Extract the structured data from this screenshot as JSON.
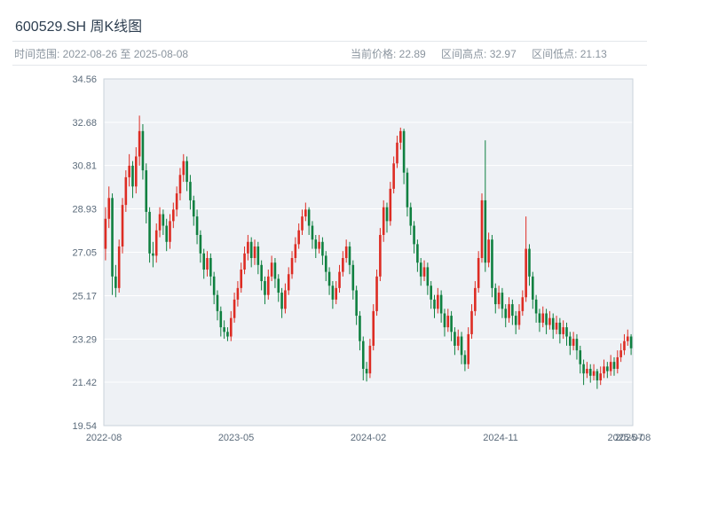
{
  "header": {
    "title": "600529.SH 周K线图",
    "time_range_label": "时间范围: 2022-08-26 至 2025-08-08",
    "current_price_label": "当前价格: 22.89",
    "range_high_label": "区间高点: 32.97",
    "range_low_label": "区间低点: 21.13"
  },
  "chart_data": {
    "type": "candlestick",
    "title": "600529.SH 周K线图",
    "period": "weekly",
    "symbol": "600529.SH",
    "date_start": "2022-08-26",
    "date_end": "2025-08-08",
    "current_price": 22.89,
    "range_high": 32.97,
    "range_low": 21.13,
    "ylim": [
      19.54,
      34.56
    ],
    "y_ticks": [
      19.54,
      21.42,
      23.29,
      25.17,
      27.05,
      28.93,
      30.81,
      32.68,
      34.56
    ],
    "x_ticks": [
      {
        "pos": 0.0,
        "label": "2022-08"
      },
      {
        "pos": 0.25,
        "label": "2023-05"
      },
      {
        "pos": 0.5,
        "label": "2024-02"
      },
      {
        "pos": 0.75,
        "label": "2024-11"
      },
      {
        "pos": 0.986,
        "label": "2025-07"
      },
      {
        "pos": 1.0,
        "label": "2025-08"
      }
    ],
    "up_color": "#dd2c23",
    "down_color": "#0f8040",
    "plot_bg": "#eef1f5",
    "grid_color": "#ffffff",
    "border_color": "#c9d2da",
    "grid_on": true,
    "legend": "none",
    "candles_format": [
      "open",
      "high",
      "low",
      "close"
    ],
    "candles": [
      [
        27.2,
        29.0,
        26.7,
        28.5
      ],
      [
        28.5,
        29.9,
        28.1,
        29.4
      ],
      [
        29.4,
        29.6,
        25.2,
        26.0
      ],
      [
        26.0,
        26.5,
        25.1,
        25.5
      ],
      [
        25.5,
        27.6,
        25.3,
        27.3
      ],
      [
        27.3,
        29.4,
        27.0,
        29.1
      ],
      [
        29.1,
        30.6,
        28.8,
        30.3
      ],
      [
        30.3,
        31.3,
        29.9,
        30.8
      ],
      [
        30.8,
        31.0,
        29.4,
        29.9
      ],
      [
        29.9,
        31.6,
        29.6,
        31.2
      ],
      [
        31.2,
        32.97,
        30.8,
        32.3
      ],
      [
        32.3,
        32.6,
        30.2,
        30.6
      ],
      [
        30.6,
        30.9,
        28.3,
        28.8
      ],
      [
        28.8,
        29.0,
        26.6,
        27.0
      ],
      [
        27.0,
        27.5,
        26.4,
        26.9
      ],
      [
        26.9,
        28.3,
        26.6,
        28.0
      ],
      [
        28.0,
        29.0,
        27.7,
        28.7
      ],
      [
        28.7,
        28.9,
        27.8,
        28.2
      ],
      [
        28.2,
        28.5,
        27.1,
        27.5
      ],
      [
        27.5,
        28.7,
        27.2,
        28.4
      ],
      [
        28.4,
        29.2,
        28.1,
        28.9
      ],
      [
        28.9,
        29.9,
        28.6,
        29.6
      ],
      [
        29.6,
        30.7,
        29.3,
        30.4
      ],
      [
        30.4,
        31.3,
        30.1,
        31.0
      ],
      [
        31.0,
        31.2,
        29.7,
        30.1
      ],
      [
        30.1,
        30.4,
        28.9,
        29.3
      ],
      [
        29.3,
        29.5,
        28.2,
        28.6
      ],
      [
        28.6,
        28.9,
        27.4,
        27.8
      ],
      [
        27.8,
        28.0,
        26.6,
        27.0
      ],
      [
        27.0,
        27.2,
        25.9,
        26.3
      ],
      [
        26.3,
        27.1,
        26.0,
        26.8
      ],
      [
        26.8,
        27.0,
        25.6,
        26.0
      ],
      [
        26.0,
        26.2,
        24.8,
        25.2
      ],
      [
        25.2,
        25.4,
        24.1,
        24.5
      ],
      [
        24.5,
        24.7,
        23.4,
        23.8
      ],
      [
        23.8,
        24.1,
        23.3,
        23.6
      ],
      [
        23.6,
        23.8,
        23.2,
        23.4
      ],
      [
        23.4,
        24.5,
        23.2,
        24.2
      ],
      [
        24.2,
        25.3,
        24.0,
        25.0
      ],
      [
        25.0,
        25.8,
        24.7,
        25.5
      ],
      [
        25.5,
        26.6,
        25.3,
        26.3
      ],
      [
        26.3,
        27.3,
        26.1,
        27.0
      ],
      [
        27.0,
        27.8,
        26.7,
        27.5
      ],
      [
        27.5,
        27.7,
        26.4,
        26.8
      ],
      [
        26.8,
        27.6,
        26.5,
        27.3
      ],
      [
        27.3,
        27.5,
        26.1,
        26.5
      ],
      [
        26.5,
        26.7,
        25.4,
        25.8
      ],
      [
        25.8,
        26.0,
        24.8,
        25.2
      ],
      [
        25.2,
        26.3,
        25.0,
        26.0
      ],
      [
        26.0,
        26.9,
        25.8,
        26.6
      ],
      [
        26.6,
        26.8,
        25.5,
        25.9
      ],
      [
        25.9,
        26.1,
        24.9,
        25.3
      ],
      [
        25.3,
        25.5,
        24.2,
        24.6
      ],
      [
        24.6,
        25.7,
        24.4,
        25.4
      ],
      [
        25.4,
        26.4,
        25.2,
        26.1
      ],
      [
        26.1,
        27.1,
        25.9,
        26.8
      ],
      [
        26.8,
        27.7,
        26.6,
        27.4
      ],
      [
        27.4,
        28.3,
        27.2,
        28.0
      ],
      [
        28.0,
        28.9,
        27.8,
        28.6
      ],
      [
        28.6,
        29.2,
        28.4,
        28.9
      ],
      [
        28.9,
        29.0,
        27.8,
        28.2
      ],
      [
        28.2,
        28.4,
        27.2,
        27.6
      ],
      [
        27.6,
        27.8,
        26.8,
        27.2
      ],
      [
        27.2,
        27.8,
        27.0,
        27.5
      ],
      [
        27.5,
        27.7,
        26.5,
        26.9
      ],
      [
        26.9,
        27.1,
        25.8,
        26.2
      ],
      [
        26.2,
        26.4,
        25.2,
        25.6
      ],
      [
        25.6,
        25.8,
        24.6,
        25.0
      ],
      [
        25.0,
        25.8,
        24.8,
        25.5
      ],
      [
        25.5,
        26.5,
        25.3,
        26.2
      ],
      [
        26.2,
        27.1,
        26.0,
        26.8
      ],
      [
        26.8,
        27.6,
        26.6,
        27.3
      ],
      [
        27.3,
        27.5,
        26.1,
        26.5
      ],
      [
        26.5,
        26.7,
        25.0,
        25.4
      ],
      [
        25.4,
        25.6,
        23.9,
        24.3
      ],
      [
        24.3,
        24.5,
        22.8,
        23.2
      ],
      [
        23.2,
        23.4,
        21.5,
        22.0
      ],
      [
        22.0,
        22.3,
        21.45,
        21.8
      ],
      [
        21.8,
        23.3,
        21.6,
        23.0
      ],
      [
        23.0,
        24.8,
        22.8,
        24.5
      ],
      [
        24.5,
        26.3,
        24.3,
        26.0
      ],
      [
        26.0,
        28.1,
        25.8,
        27.8
      ],
      [
        27.8,
        29.3,
        27.5,
        29.0
      ],
      [
        29.0,
        29.2,
        27.9,
        28.4
      ],
      [
        28.4,
        30.1,
        28.2,
        29.8
      ],
      [
        29.8,
        31.2,
        29.6,
        30.9
      ],
      [
        30.9,
        32.1,
        30.7,
        31.8
      ],
      [
        31.8,
        32.45,
        31.5,
        32.3
      ],
      [
        32.3,
        32.4,
        30.0,
        30.5
      ],
      [
        30.5,
        30.7,
        28.6,
        29.0
      ],
      [
        29.0,
        29.2,
        27.8,
        28.2
      ],
      [
        28.2,
        28.4,
        27.0,
        27.4
      ],
      [
        27.4,
        27.6,
        26.2,
        26.6
      ],
      [
        26.6,
        26.8,
        25.6,
        26.0
      ],
      [
        26.0,
        26.7,
        25.8,
        26.4
      ],
      [
        26.4,
        26.6,
        25.2,
        25.6
      ],
      [
        25.6,
        25.8,
        24.6,
        25.0
      ],
      [
        25.0,
        25.2,
        24.2,
        24.6
      ],
      [
        24.6,
        25.5,
        24.4,
        25.2
      ],
      [
        25.2,
        25.4,
        24.0,
        24.4
      ],
      [
        24.4,
        24.6,
        23.4,
        23.8
      ],
      [
        23.8,
        24.6,
        23.6,
        24.3
      ],
      [
        24.3,
        24.5,
        23.2,
        23.6
      ],
      [
        23.6,
        23.8,
        22.6,
        23.0
      ],
      [
        23.0,
        23.7,
        22.8,
        23.4
      ],
      [
        23.4,
        23.6,
        22.2,
        22.6
      ],
      [
        22.6,
        22.8,
        21.9,
        22.2
      ],
      [
        22.2,
        23.8,
        22.0,
        23.5
      ],
      [
        23.5,
        24.8,
        23.3,
        24.5
      ],
      [
        24.5,
        25.8,
        24.3,
        25.5
      ],
      [
        25.5,
        27.1,
        25.3,
        26.8
      ],
      [
        26.8,
        29.6,
        26.6,
        29.3
      ],
      [
        29.3,
        31.9,
        26.2,
        26.6
      ],
      [
        26.6,
        27.9,
        26.4,
        27.6
      ],
      [
        27.6,
        27.8,
        25.1,
        25.5
      ],
      [
        25.5,
        25.7,
        24.4,
        24.8
      ],
      [
        24.8,
        25.6,
        24.6,
        25.3
      ],
      [
        25.3,
        25.5,
        24.2,
        24.6
      ],
      [
        24.6,
        24.8,
        23.8,
        24.2
      ],
      [
        24.2,
        25.1,
        24.0,
        24.8
      ],
      [
        24.8,
        25.0,
        23.9,
        24.3
      ],
      [
        24.3,
        24.5,
        23.5,
        23.9
      ],
      [
        23.9,
        24.8,
        23.7,
        24.5
      ],
      [
        24.5,
        25.4,
        24.3,
        25.1
      ],
      [
        25.1,
        28.6,
        24.9,
        27.2
      ],
      [
        27.2,
        27.4,
        25.6,
        26.0
      ],
      [
        26.0,
        26.2,
        24.6,
        25.0
      ],
      [
        25.0,
        25.2,
        24.0,
        24.4
      ],
      [
        24.4,
        24.6,
        23.6,
        24.0
      ],
      [
        24.0,
        24.7,
        23.8,
        24.4
      ],
      [
        24.4,
        24.6,
        23.5,
        23.9
      ],
      [
        23.9,
        24.5,
        23.7,
        24.2
      ],
      [
        24.2,
        24.4,
        23.3,
        23.7
      ],
      [
        23.7,
        24.3,
        23.5,
        24.0
      ],
      [
        24.0,
        24.2,
        23.1,
        23.5
      ],
      [
        23.5,
        24.1,
        23.3,
        23.8
      ],
      [
        23.8,
        24.0,
        23.0,
        23.4
      ],
      [
        23.4,
        23.6,
        22.6,
        23.0
      ],
      [
        23.0,
        23.6,
        22.8,
        23.3
      ],
      [
        23.3,
        23.5,
        22.4,
        22.8
      ],
      [
        22.8,
        23.0,
        21.8,
        22.2
      ],
      [
        22.2,
        22.4,
        21.3,
        21.8
      ],
      [
        21.8,
        22.3,
        21.6,
        22.0
      ],
      [
        22.0,
        22.2,
        21.4,
        21.7
      ],
      [
        21.7,
        22.2,
        21.5,
        21.9
      ],
      [
        21.9,
        22.0,
        21.13,
        21.5
      ],
      [
        21.5,
        22.1,
        21.3,
        21.8
      ],
      [
        21.8,
        22.4,
        21.6,
        22.1
      ],
      [
        22.1,
        22.3,
        21.6,
        21.9
      ],
      [
        21.9,
        22.6,
        21.7,
        22.3
      ],
      [
        22.3,
        22.5,
        21.7,
        22.0
      ],
      [
        22.0,
        22.8,
        21.8,
        22.5
      ],
      [
        22.5,
        23.1,
        22.3,
        22.8
      ],
      [
        22.8,
        23.5,
        22.6,
        23.2
      ],
      [
        23.2,
        23.7,
        23.0,
        23.4
      ],
      [
        23.4,
        23.5,
        22.6,
        22.89
      ]
    ]
  }
}
